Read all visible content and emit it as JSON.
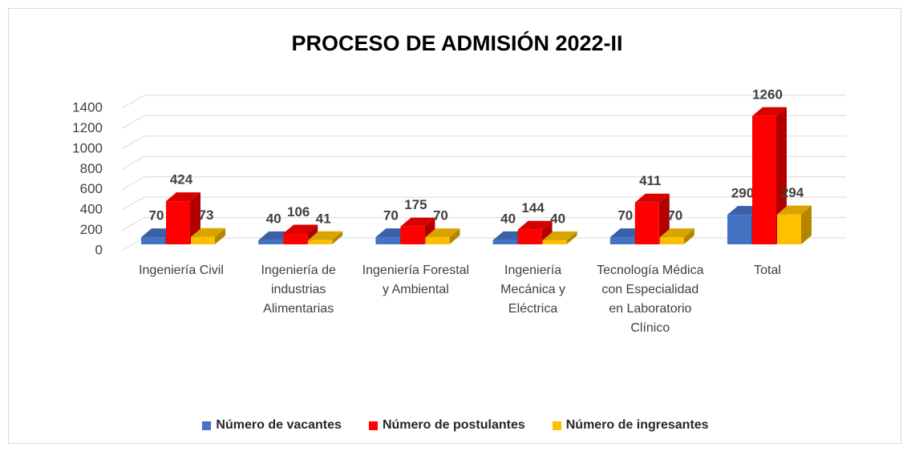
{
  "chart_data": {
    "type": "bar3d",
    "title": "PROCESO DE ADMISIÓN 2022-II",
    "categories": [
      "Ingeniería Civil",
      "Ingeniería de industrias Alimentarias",
      "Ingeniería Forestal y Ambiental",
      "Ingeniería Mecánica y Eléctrica",
      "Tecnología Médica  con Especialidad en Laboratorio Clínico",
      "Total"
    ],
    "series": [
      {
        "name": "Número de vacantes",
        "color": "#4472c4",
        "values": [
          70,
          40,
          70,
          40,
          70,
          290
        ]
      },
      {
        "name": "Número de postulantes",
        "color": "#ff0000",
        "values": [
          424,
          106,
          175,
          144,
          411,
          1260
        ]
      },
      {
        "name": "Número de ingresantes",
        "color": "#ffc000",
        "values": [
          73,
          41,
          70,
          40,
          70,
          294
        ]
      }
    ],
    "ylim": [
      0,
      1400
    ],
    "yticks": [
      0,
      200,
      400,
      600,
      800,
      1000,
      1200,
      1400
    ],
    "grid": true,
    "legend": "bottom"
  }
}
